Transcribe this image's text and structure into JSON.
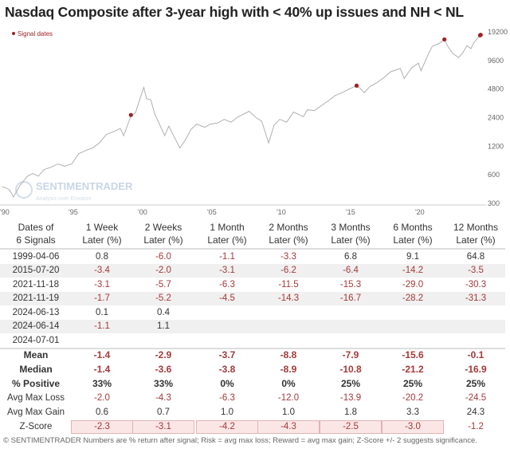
{
  "title": "Nasdaq Composite after 3-year high with < 40% up issues and NH < NL",
  "chart_data": {
    "type": "line",
    "title": "Nasdaq Composite after 3-year high with < 40% up issues and NH < NL",
    "y_scale": "log",
    "ylim": [
      300,
      19200
    ],
    "y_ticks": [
      "300",
      "600",
      "1200",
      "2400",
      "4800",
      "9600",
      "19200"
    ],
    "x_ticks": [
      "'90",
      "'95",
      "'00",
      "'05",
      "'10",
      "'15",
      "'20"
    ],
    "xlim": [
      1990,
      2024.6
    ],
    "grid": false,
    "legend": {
      "label": "Signal dates",
      "placement": "top-left"
    },
    "colors": {
      "line": "#b0b0b0",
      "signal": "#9b2226"
    },
    "series": [
      {
        "x": [
          1990.0,
          1990.5,
          1990.8,
          1991.3,
          1991.8,
          1992.2,
          1992.6,
          1993.0,
          1993.5,
          1994.0,
          1994.5,
          1995.0,
          1995.5,
          1996.0,
          1996.5,
          1997.0,
          1997.5,
          1998.0,
          1998.5,
          1998.75,
          1999.27,
          1999.6,
          1999.9,
          2000.2,
          2000.4,
          2000.7,
          2001.0,
          2001.3,
          2001.7,
          2002.0,
          2002.4,
          2002.8,
          2003.2,
          2003.6,
          2004.0,
          2004.6,
          2005.0,
          2005.5,
          2006.0,
          2006.5,
          2007.0,
          2007.8,
          2008.3,
          2008.7,
          2009.2,
          2009.6,
          2010.0,
          2010.5,
          2011.0,
          2011.7,
          2012.0,
          2012.5,
          2013.0,
          2013.5,
          2014.0,
          2014.5,
          2015.0,
          2015.55,
          2015.8,
          2016.1,
          2016.5,
          2017.0,
          2017.5,
          2018.0,
          2018.7,
          2018.98,
          2019.5,
          2020.0,
          2020.2,
          2020.7,
          2021.0,
          2021.5,
          2021.88,
          2022.2,
          2022.5,
          2022.9,
          2023.2,
          2023.5,
          2023.8,
          2024.0,
          2024.45,
          2024.5,
          2024.6
        ],
        "values": [
          450,
          420,
          350,
          470,
          580,
          620,
          580,
          680,
          720,
          780,
          740,
          780,
          1000,
          1080,
          1150,
          1300,
          1600,
          1700,
          1850,
          1550,
          2500,
          2700,
          3700,
          5000,
          3800,
          3700,
          2600,
          2100,
          1550,
          1950,
          1500,
          1150,
          1400,
          1800,
          2050,
          1900,
          2050,
          2100,
          2300,
          2150,
          2450,
          2800,
          2400,
          2200,
          1300,
          2000,
          2300,
          2150,
          2750,
          2450,
          2900,
          2850,
          3200,
          3600,
          4100,
          4400,
          4800,
          5200,
          4900,
          4400,
          5100,
          5600,
          6300,
          7300,
          7900,
          6200,
          8000,
          9000,
          7500,
          11000,
          13500,
          14500,
          15900,
          13000,
          11300,
          10300,
          11500,
          13700,
          12800,
          14800,
          17700,
          18200,
          18400
        ]
      }
    ],
    "signals": [
      {
        "date": "1999-04-06",
        "x": 1999.27,
        "value": 2560
      },
      {
        "date": "2015-07-20",
        "x": 2015.55,
        "value": 5218
      },
      {
        "date": "2021-11-18",
        "x": 2021.88,
        "value": 15993
      },
      {
        "date": "2024-06-14",
        "x": 2024.45,
        "value": 17689
      },
      {
        "date": "2024-07-01",
        "x": 2024.5,
        "value": 17879
      }
    ]
  },
  "watermark": "SENTIMENTRADER Analysis over Emotion",
  "table": {
    "header": [
      [
        "Dates of",
        "6 Signals"
      ],
      [
        "1 Week",
        "Later (%)"
      ],
      [
        "2 Weeks",
        "Later (%)"
      ],
      [
        "1 Month",
        "Later (%)"
      ],
      [
        "2 Months",
        "Later (%)"
      ],
      [
        "3 Months",
        "Later (%)"
      ],
      [
        "6 Months",
        "Later (%)"
      ],
      [
        "12 Months",
        "Later (%)"
      ]
    ],
    "rows": [
      [
        "1999-04-06",
        "0.8",
        "-6.0",
        "-1.1",
        "-3.3",
        "6.8",
        "9.1",
        "64.8"
      ],
      [
        "2015-07-20",
        "-3.4",
        "-2.0",
        "-3.1",
        "-6.2",
        "-6.4",
        "-14.2",
        "-3.5"
      ],
      [
        "2021-11-18",
        "-3.1",
        "-5.7",
        "-6.3",
        "-11.5",
        "-15.3",
        "-29.0",
        "-30.3"
      ],
      [
        "2021-11-19",
        "-1.7",
        "-5.2",
        "-4.5",
        "-14.3",
        "-16.7",
        "-28.2",
        "-31.3"
      ],
      [
        "2024-06-13",
        "0.1",
        "0.4",
        "",
        "",
        "",
        "",
        ""
      ],
      [
        "2024-06-14",
        "-1.1",
        "1.1",
        "",
        "",
        "",
        "",
        ""
      ],
      [
        "2024-07-01",
        "",
        "",
        "",
        "",
        "",
        "",
        ""
      ]
    ],
    "stats": [
      [
        "Mean",
        "-1.4",
        "-2.9",
        "-3.7",
        "-8.8",
        "-7.9",
        "-15.6",
        "-0.1"
      ],
      [
        "Median",
        "-1.4",
        "-3.6",
        "-3.8",
        "-8.9",
        "-10.8",
        "-21.2",
        "-16.9"
      ],
      [
        "% Positive",
        "33%",
        "33%",
        "0%",
        "0%",
        "25%",
        "25%",
        "25%"
      ],
      [
        "Avg Max Loss",
        "-2.0",
        "-4.3",
        "-6.3",
        "-12.0",
        "-13.9",
        "-20.2",
        "-24.5"
      ],
      [
        "Avg Max Gain",
        "0.6",
        "0.7",
        "1.0",
        "1.0",
        "1.8",
        "3.3",
        "24.3"
      ],
      [
        "Z-Score",
        "-2.3",
        "-3.1",
        "-4.2",
        "-4.3",
        "-2.5",
        "-3.0",
        "-1.2"
      ]
    ],
    "zscore_highlighted": [
      true,
      true,
      true,
      true,
      true,
      true,
      false
    ]
  },
  "footer": "© SENTIMENTRADER  Numbers are % return after signal; Risk = avg max loss; Reward = avg max gain; Z-Score +/- 2 suggests significance."
}
